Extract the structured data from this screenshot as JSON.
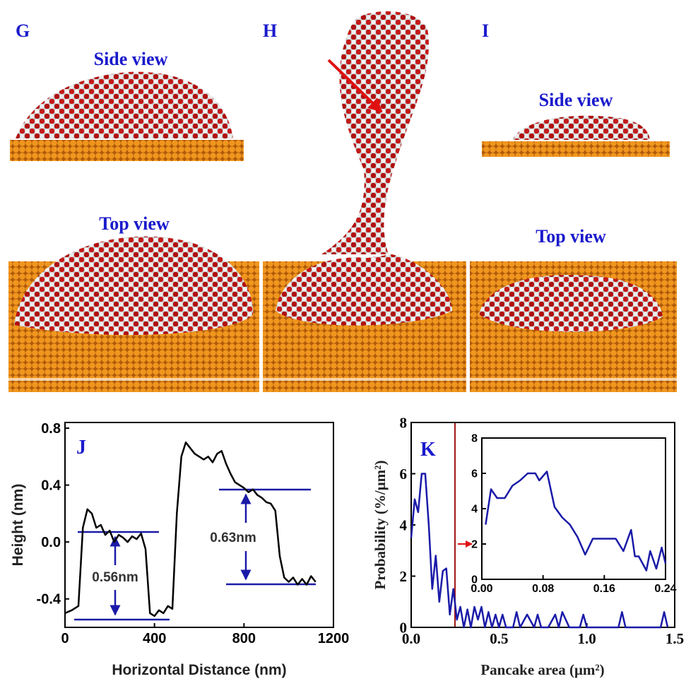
{
  "panels": {
    "G": "G",
    "H": "H",
    "I": "I",
    "side_view_g": "Side view",
    "top_view_g": "Top view",
    "side_view_i": "Side view",
    "top_view_i": "Top view"
  },
  "chart_data": [
    {
      "type": "line",
      "panel_label": "J",
      "xlabel": "Horizontal Distance (nm)",
      "ylabel": "Height (nm)",
      "color": "#000000",
      "annotations": [
        "0.56nm",
        "0.63nm"
      ],
      "x": [
        0,
        30,
        60,
        80,
        100,
        120,
        140,
        160,
        180,
        200,
        220,
        240,
        260,
        280,
        300,
        320,
        340,
        360,
        380,
        400,
        420,
        440,
        460,
        480,
        500,
        520,
        540,
        560,
        580,
        600,
        620,
        640,
        660,
        680,
        700,
        720,
        740,
        760,
        780,
        800,
        820,
        840,
        860,
        880,
        900,
        920,
        940,
        960,
        980,
        1000,
        1020,
        1040,
        1060,
        1080,
        1100,
        1120
      ],
      "values": [
        -0.5,
        -0.48,
        -0.45,
        0.1,
        0.23,
        0.2,
        0.1,
        0.12,
        0.05,
        0.08,
        0.0,
        0.05,
        0.03,
        0.0,
        0.04,
        0.02,
        0.06,
        -0.05,
        -0.5,
        -0.52,
        -0.48,
        -0.5,
        -0.45,
        -0.47,
        0.2,
        0.6,
        0.7,
        0.66,
        0.62,
        0.6,
        0.58,
        0.6,
        0.56,
        0.62,
        0.64,
        0.55,
        0.48,
        0.42,
        0.4,
        0.38,
        0.35,
        0.37,
        0.33,
        0.31,
        0.28,
        0.27,
        0.22,
        -0.1,
        -0.25,
        -0.28,
        -0.25,
        -0.3,
        -0.26,
        -0.3,
        -0.24,
        -0.28
      ],
      "xlim": [
        0,
        1200
      ],
      "xticks": [
        0,
        400,
        800,
        1200
      ],
      "ylim": [
        -0.6,
        0.84
      ],
      "yticks": [
        -0.4,
        {
          "value": 0,
          "label": "0.0"
        },
        0.4,
        0.8
      ]
    },
    {
      "type": "line",
      "panel_label": "K",
      "xlabel": "Pancake area (μm²)",
      "ylabel": "Probability (%/μm²)",
      "color": "#1a1aa8",
      "x": [
        0,
        0.02,
        0.04,
        0.06,
        0.08,
        0.1,
        0.12,
        0.14,
        0.16,
        0.18,
        0.2,
        0.22,
        0.24,
        0.26,
        0.28,
        0.3,
        0.32,
        0.34,
        0.36,
        0.38,
        0.4,
        0.42,
        0.44,
        0.46,
        0.48,
        0.5,
        0.52,
        0.54,
        0.58,
        0.6,
        0.62,
        0.66,
        0.7,
        0.72,
        0.74,
        0.78,
        0.82,
        0.84,
        0.86,
        0.9,
        0.96,
        0.98,
        1.0,
        1.04,
        1.18,
        1.2,
        1.22,
        1.42,
        1.44,
        1.46
      ],
      "values": [
        3.5,
        5,
        4.5,
        6,
        6,
        4,
        1.5,
        2.8,
        1,
        2.2,
        2.3,
        0.5,
        1.5,
        0.3,
        0.8,
        0,
        0.7,
        0,
        0.8,
        0.3,
        0.8,
        0,
        0.6,
        0,
        0.5,
        0,
        0.5,
        0,
        0,
        0.6,
        0,
        0.5,
        0,
        0.5,
        0,
        0,
        0.5,
        0,
        0.6,
        0,
        0,
        0.5,
        0,
        0,
        0,
        0.6,
        0,
        0,
        0.6,
        0
      ],
      "xlim": [
        0,
        1.5
      ],
      "xticks": [
        {
          "value": 0,
          "label": "0.0"
        },
        0.5,
        {
          "value": 1,
          "label": "1.0"
        },
        1.5
      ],
      "ylim": [
        0,
        8
      ],
      "yticks": [
        0,
        2,
        4,
        6,
        8
      ]
    },
    {
      "type": "line",
      "color": "#1a1aa8",
      "x": [
        0.005,
        0.012,
        0.02,
        0.03,
        0.04,
        0.05,
        0.06,
        0.07,
        0.075,
        0.085,
        0.095,
        0.105,
        0.115,
        0.125,
        0.135,
        0.145,
        0.155,
        0.165,
        0.175,
        0.185,
        0.195,
        0.2,
        0.205,
        0.215,
        0.22,
        0.228,
        0.235,
        0.24
      ],
      "values": [
        3.1,
        5.1,
        4.6,
        4.6,
        5.3,
        5.6,
        6.0,
        6.0,
        5.6,
        6.1,
        4.1,
        3.5,
        3.1,
        2.4,
        1.4,
        2.3,
        2.3,
        2.3,
        2.3,
        1.6,
        2.8,
        1.3,
        1.3,
        0.5,
        1.6,
        0.6,
        1.8,
        0.9
      ],
      "xlim": [
        0,
        0.24
      ],
      "xticks": [
        {
          "value": 0,
          "label": "0.00"
        },
        0.08,
        0.16,
        0.24
      ],
      "ylim": [
        0,
        8
      ],
      "yticks": [
        0,
        2,
        4,
        6,
        8
      ]
    }
  ]
}
